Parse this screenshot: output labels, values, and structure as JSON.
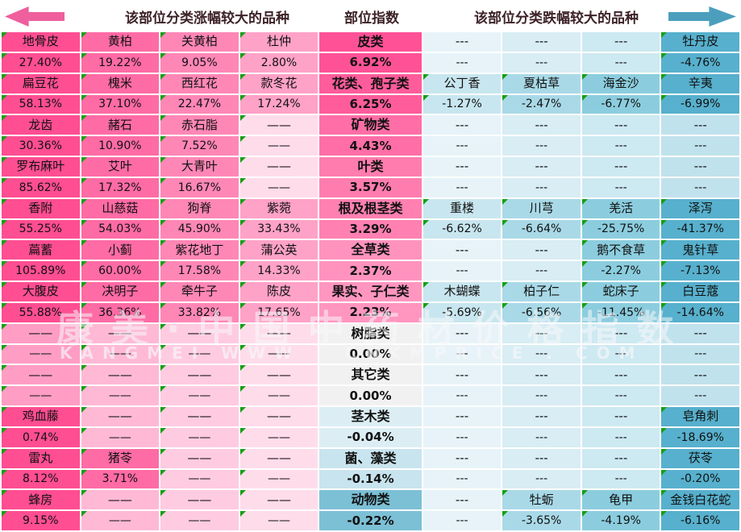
{
  "header": {
    "gainers_title": "该部位分类涨幅较大的品种",
    "index_title": "部位指数",
    "losers_title": "该部位分类跌幅较大的品种"
  },
  "watermark": {
    "line1": "康美·中国中药材价格指数",
    "line2": "KANGMEI WWW . CNKMPRICE . COM"
  },
  "dash": {
    "left": "——",
    "right": "---"
  },
  "colors": {
    "left_arrow": "#ef5f9d",
    "right_arrow": "#4b9fbd",
    "triangle": "#14a014",
    "header_text": "#3d2228",
    "left_data": [
      "#ff4e92",
      "#ff6ba5",
      "#ff87b6",
      "#ffa2c7"
    ],
    "left_dash": [
      "#ff9dc4",
      "#ffb9d5",
      "#ffcbe0",
      "#ffdcea"
    ],
    "right_data": [
      "#c8e6ef",
      "#a9d9e7",
      "#8bcdde",
      "#57b0cd"
    ],
    "right_dash": [
      "#e7f3f8",
      "#d8edf4",
      "#cde9f1",
      "#c0e2ed"
    ]
  },
  "rows": [
    {
      "category": "皮类",
      "index": "6.92%",
      "index_bg": "#ff5296",
      "gainers": [
        {
          "name": "地骨皮",
          "value": "27.40%"
        },
        {
          "name": "黄柏",
          "value": "19.22%"
        },
        {
          "name": "关黄柏",
          "value": "9.05%"
        },
        {
          "name": "杜仲",
          "value": "2.80%"
        }
      ],
      "losers": [
        {
          "name": "---",
          "value": "---"
        },
        {
          "name": "---",
          "value": "---"
        },
        {
          "name": "---",
          "value": "---"
        },
        {
          "name": "牡丹皮",
          "value": "-4.76%"
        }
      ]
    },
    {
      "category": "花类、孢子类",
      "index": "6.25%",
      "index_bg": "#ff5c9b",
      "gainers": [
        {
          "name": "扁豆花",
          "value": "58.13%"
        },
        {
          "name": "槐米",
          "value": "37.10%"
        },
        {
          "name": "西红花",
          "value": "22.47%"
        },
        {
          "name": "款冬花",
          "value": "17.24%"
        }
      ],
      "losers": [
        {
          "name": "公丁香",
          "value": "-1.27%"
        },
        {
          "name": "夏枯草",
          "value": "-2.47%"
        },
        {
          "name": "海金沙",
          "value": "-6.77%"
        },
        {
          "name": "辛夷",
          "value": "-6.99%"
        }
      ]
    },
    {
      "category": "矿物类",
      "index": "4.43%",
      "index_bg": "#ff6ea6",
      "gainers": [
        {
          "name": "龙齿",
          "value": "30.36%"
        },
        {
          "name": "赭石",
          "value": "10.90%"
        },
        {
          "name": "赤石脂",
          "value": "7.52%"
        },
        {
          "name": "——",
          "value": "——"
        }
      ],
      "losers": [
        {
          "name": "---",
          "value": "---"
        },
        {
          "name": "---",
          "value": "---"
        },
        {
          "name": "---",
          "value": "---"
        },
        {
          "name": "---",
          "value": "---"
        }
      ]
    },
    {
      "category": "叶类",
      "index": "3.57%",
      "index_bg": "#ff7cae",
      "gainers": [
        {
          "name": "罗布麻叶",
          "value": "85.62%"
        },
        {
          "name": "艾叶",
          "value": "17.32%"
        },
        {
          "name": "大青叶",
          "value": "16.67%"
        },
        {
          "name": "——",
          "value": "——"
        }
      ],
      "losers": [
        {
          "name": "---",
          "value": "---"
        },
        {
          "name": "---",
          "value": "---"
        },
        {
          "name": "---",
          "value": "---"
        },
        {
          "name": "---",
          "value": "---"
        }
      ]
    },
    {
      "category": "根及根茎类",
      "index": "3.29%",
      "index_bg": "#ff80b1",
      "gainers": [
        {
          "name": "香附",
          "value": "55.25%"
        },
        {
          "name": "山慈菇",
          "value": "54.03%"
        },
        {
          "name": "狗脊",
          "value": "45.90%"
        },
        {
          "name": "紫菀",
          "value": "33.43%"
        }
      ],
      "losers": [
        {
          "name": "重楼",
          "value": "-6.62%"
        },
        {
          "name": "川芎",
          "value": "-6.64%"
        },
        {
          "name": "羌活",
          "value": "-25.75%"
        },
        {
          "name": "泽泻",
          "value": "-41.37%"
        }
      ]
    },
    {
      "category": "全草类",
      "index": "2.37%",
      "index_bg": "#ff93be",
      "gainers": [
        {
          "name": "萹蓄",
          "value": "105.89%"
        },
        {
          "name": "小蓟",
          "value": "60.00%"
        },
        {
          "name": "紫花地丁",
          "value": "17.58%"
        },
        {
          "name": "蒲公英",
          "value": "14.33%"
        }
      ],
      "losers": [
        {
          "name": "---",
          "value": "---"
        },
        {
          "name": "---",
          "value": "---"
        },
        {
          "name": "鹅不食草",
          "value": "-2.27%"
        },
        {
          "name": "鬼针草",
          "value": "-7.13%"
        }
      ]
    },
    {
      "category": "果实、子仁类",
      "index": "2.23%",
      "index_bg": "#ff96c0",
      "gainers": [
        {
          "name": "大腹皮",
          "value": "55.88%"
        },
        {
          "name": "决明子",
          "value": "36.36%"
        },
        {
          "name": "牵牛子",
          "value": "33.82%"
        },
        {
          "name": "陈皮",
          "value": "17.65%"
        }
      ],
      "losers": [
        {
          "name": "木蝴蝶",
          "value": "-5.69%"
        },
        {
          "name": "柏子仁",
          "value": "-6.56%"
        },
        {
          "name": "蛇床子",
          "value": "-11.45%"
        },
        {
          "name": "白豆蔻",
          "value": "-14.64%"
        }
      ]
    },
    {
      "category": "树脂类",
      "index": "0.00%",
      "index_bg": "#f1f1f1",
      "gainers": [
        {
          "name": "——",
          "value": "——"
        },
        {
          "name": "——",
          "value": "——"
        },
        {
          "name": "——",
          "value": "——"
        },
        {
          "name": "——",
          "value": "——"
        }
      ],
      "losers": [
        {
          "name": "---",
          "value": "---"
        },
        {
          "name": "---",
          "value": "---"
        },
        {
          "name": "---",
          "value": "---"
        },
        {
          "name": "---",
          "value": "---"
        }
      ]
    },
    {
      "category": "其它类",
      "index": "0.00%",
      "index_bg": "#f1f1f1",
      "gainers": [
        {
          "name": "——",
          "value": "——"
        },
        {
          "name": "——",
          "value": "——"
        },
        {
          "name": "——",
          "value": "——"
        },
        {
          "name": "——",
          "value": "——"
        }
      ],
      "losers": [
        {
          "name": "---",
          "value": "---"
        },
        {
          "name": "---",
          "value": "---"
        },
        {
          "name": "---",
          "value": "---"
        },
        {
          "name": "---",
          "value": "---"
        }
      ]
    },
    {
      "category": "茎木类",
      "index": "-0.04%",
      "index_bg": "#dceef4",
      "gainers": [
        {
          "name": "鸡血藤",
          "value": "0.74%"
        },
        {
          "name": "——",
          "value": "——"
        },
        {
          "name": "——",
          "value": "——"
        },
        {
          "name": "——",
          "value": "——"
        }
      ],
      "losers": [
        {
          "name": "---",
          "value": "---"
        },
        {
          "name": "---",
          "value": "---"
        },
        {
          "name": "---",
          "value": "---"
        },
        {
          "name": "皂角刺",
          "value": "-18.69%"
        }
      ]
    },
    {
      "category": "菌、藻类",
      "index": "-0.14%",
      "index_bg": "#c8e4ee",
      "gainers": [
        {
          "name": "雷丸",
          "value": "8.12%"
        },
        {
          "name": "猪苓",
          "value": "3.71%"
        },
        {
          "name": "——",
          "value": "——"
        },
        {
          "name": "——",
          "value": "——"
        }
      ],
      "losers": [
        {
          "name": "---",
          "value": "---"
        },
        {
          "name": "---",
          "value": "---"
        },
        {
          "name": "---",
          "value": "---"
        },
        {
          "name": "茯苓",
          "value": "-0.20%"
        }
      ]
    },
    {
      "category": "动物类",
      "index": "-0.22%",
      "index_bg": "#7cc0d6",
      "gainers": [
        {
          "name": "蜂房",
          "value": "9.15%"
        },
        {
          "name": "——",
          "value": "——"
        },
        {
          "name": "——",
          "value": "——"
        },
        {
          "name": "——",
          "value": "——"
        }
      ],
      "losers": [
        {
          "name": "---",
          "value": "---"
        },
        {
          "name": "牡蛎",
          "value": "-3.65%"
        },
        {
          "name": "龟甲",
          "value": "-4.19%"
        },
        {
          "name": "金钱白花蛇",
          "value": "-6.16%"
        }
      ]
    }
  ],
  "chart_data": {
    "type": "table",
    "title": "部位指数",
    "categories": [
      "皮类",
      "花类、孢子类",
      "矿物类",
      "叶类",
      "根及根茎类",
      "全草类",
      "果实、子仁类",
      "树脂类",
      "其它类",
      "茎木类",
      "菌、藻类",
      "动物类"
    ],
    "index_values": [
      6.92,
      6.25,
      4.43,
      3.57,
      3.29,
      2.37,
      2.23,
      0.0,
      0.0,
      -0.04,
      -0.14,
      -0.22
    ],
    "legend": [
      "该部位分类涨幅较大的品种",
      "该部位分类跌幅较大的品种"
    ]
  }
}
